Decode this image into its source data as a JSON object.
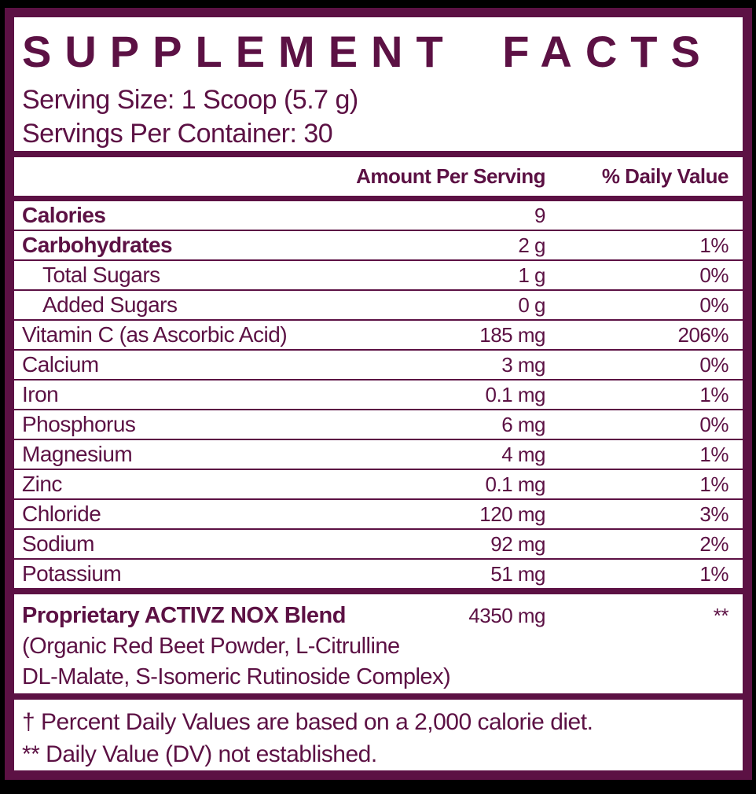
{
  "title": "SUPPLEMENT FACTS",
  "serving": {
    "size": "Serving Size: 1 Scoop (5.7 g)",
    "per_container": "Servings Per Container: 30"
  },
  "table": {
    "amount_header": "Amount Per Serving",
    "dv_header": "% Daily Value",
    "rows": [
      {
        "name": "Calories",
        "amount": "9",
        "dv": "",
        "bold": true,
        "indent": false
      },
      {
        "name": "Carbohydrates",
        "amount": "2 g",
        "dv": "1%",
        "bold": true,
        "indent": false
      },
      {
        "name": "Total Sugars",
        "amount": "1 g",
        "dv": "0%",
        "bold": false,
        "indent": true
      },
      {
        "name": "Added Sugars",
        "amount": "0 g",
        "dv": "0%",
        "bold": false,
        "indent": true
      },
      {
        "name": "Vitamin C (as Ascorbic Acid)",
        "amount": "185 mg",
        "dv": "206%",
        "bold": false,
        "indent": false
      },
      {
        "name": "Calcium",
        "amount": "3 mg",
        "dv": "0%",
        "bold": false,
        "indent": false
      },
      {
        "name": "Iron",
        "amount": "0.1 mg",
        "dv": "1%",
        "bold": false,
        "indent": false
      },
      {
        "name": "Phosphorus",
        "amount": "6 mg",
        "dv": "0%",
        "bold": false,
        "indent": false
      },
      {
        "name": "Magnesium",
        "amount": "4 mg",
        "dv": "1%",
        "bold": false,
        "indent": false
      },
      {
        "name": "Zinc",
        "amount": "0.1 mg",
        "dv": "1%",
        "bold": false,
        "indent": false
      },
      {
        "name": "Chloride",
        "amount": "120 mg",
        "dv": "3%",
        "bold": false,
        "indent": false
      },
      {
        "name": "Sodium",
        "amount": "92 mg",
        "dv": "2%",
        "bold": false,
        "indent": false
      },
      {
        "name": "Potassium",
        "amount": "51 mg",
        "dv": "1%",
        "bold": false,
        "indent": false
      }
    ]
  },
  "blend": {
    "name": "Proprietary ACTIVZ NOX Blend",
    "amount": "4350 mg",
    "dv": "**",
    "ingredients_line1": "(Organic Red Beet Powder, L-Citrulline",
    "ingredients_line2": "DL-Malate, S-Isomeric Rutinoside Complex)"
  },
  "footnotes": {
    "daily_value_note": "† Percent Daily Values are based on a 2,000 calorie diet.",
    "dv_not_established_note": "** Daily Value (DV) not established."
  },
  "colors": {
    "maroon": "#5c1144",
    "panel": "#ffffff",
    "background": "#000000"
  }
}
